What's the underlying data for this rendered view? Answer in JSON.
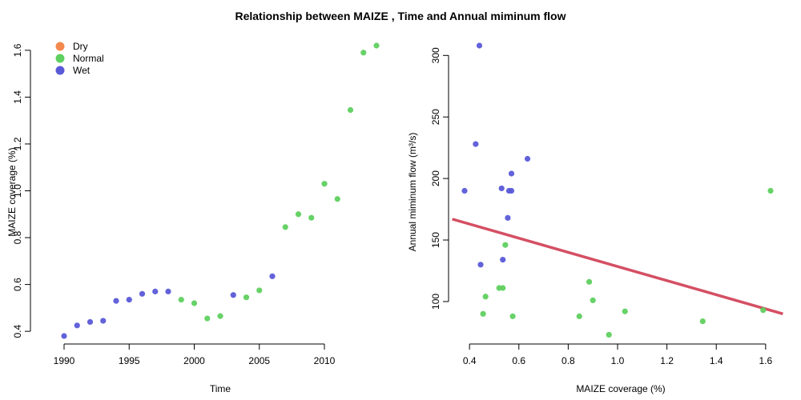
{
  "title": "Relationship between MAIZE , Time and Annual miminum flow",
  "colors": {
    "Dry": "#f4894d",
    "Normal": "#5fd05f",
    "Wet": "#5a5ad8",
    "trend": "#d44f63"
  },
  "legend": {
    "position": "top-left",
    "entries": [
      "Dry",
      "Normal",
      "Wet"
    ]
  },
  "chart_data": [
    {
      "type": "scatter",
      "xlabel": "Time",
      "ylabel": "MAIZE coverage (%)",
      "xlim": [
        1990,
        2014
      ],
      "ylim": [
        0.38,
        1.62
      ],
      "xticks": [
        "1990",
        "1995",
        "2000",
        "2005",
        "2010"
      ],
      "yticks": [
        "0.4",
        "0.6",
        "0.8",
        "1.0",
        "1.2",
        "1.4",
        "1.6"
      ],
      "xtick_values": [
        1990,
        1995,
        2000,
        2005,
        2010
      ],
      "ytick_values": [
        0.4,
        0.6,
        0.8,
        1.0,
        1.2,
        1.4,
        1.6
      ],
      "points": [
        {
          "x": 1990,
          "y": 0.38,
          "cls": "Wet"
        },
        {
          "x": 1991,
          "y": 0.425,
          "cls": "Wet"
        },
        {
          "x": 1992,
          "y": 0.44,
          "cls": "Wet"
        },
        {
          "x": 1993,
          "y": 0.445,
          "cls": "Wet"
        },
        {
          "x": 1994,
          "y": 0.53,
          "cls": "Wet"
        },
        {
          "x": 1995,
          "y": 0.535,
          "cls": "Wet"
        },
        {
          "x": 1996,
          "y": 0.56,
          "cls": "Wet"
        },
        {
          "x": 1997,
          "y": 0.57,
          "cls": "Wet"
        },
        {
          "x": 1998,
          "y": 0.57,
          "cls": "Wet"
        },
        {
          "x": 1999,
          "y": 0.535,
          "cls": "Normal"
        },
        {
          "x": 2000,
          "y": 0.52,
          "cls": "Normal"
        },
        {
          "x": 2001,
          "y": 0.455,
          "cls": "Normal"
        },
        {
          "x": 2002,
          "y": 0.465,
          "cls": "Normal"
        },
        {
          "x": 2003,
          "y": 0.555,
          "cls": "Wet"
        },
        {
          "x": 2004,
          "y": 0.545,
          "cls": "Normal"
        },
        {
          "x": 2005,
          "y": 0.575,
          "cls": "Normal"
        },
        {
          "x": 2006,
          "y": 0.635,
          "cls": "Wet"
        },
        {
          "x": 2007,
          "y": 0.845,
          "cls": "Normal"
        },
        {
          "x": 2008,
          "y": 0.9,
          "cls": "Normal"
        },
        {
          "x": 2009,
          "y": 0.885,
          "cls": "Normal"
        },
        {
          "x": 2010,
          "y": 1.03,
          "cls": "Normal"
        },
        {
          "x": 2011,
          "y": 0.965,
          "cls": "Normal"
        },
        {
          "x": 2012,
          "y": 1.345,
          "cls": "Normal"
        },
        {
          "x": 2013,
          "y": 1.59,
          "cls": "Normal"
        },
        {
          "x": 2014,
          "y": 1.62,
          "cls": "Normal"
        }
      ]
    },
    {
      "type": "scatter",
      "xlabel": "MAIZE coverage (%)",
      "ylabel": "Annual miminum flow (m³/s)",
      "xlim": [
        0.38,
        1.62
      ],
      "ylim": [
        72,
        308
      ],
      "xticks": [
        "0.4",
        "0.6",
        "0.8",
        "1.0",
        "1.2",
        "1.4",
        "1.6"
      ],
      "yticks": [
        "100",
        "150",
        "200",
        "250",
        "300"
      ],
      "xtick_values": [
        0.4,
        0.6,
        0.8,
        1.0,
        1.2,
        1.4,
        1.6
      ],
      "ytick_values": [
        100,
        150,
        200,
        250,
        300
      ],
      "trendline": {
        "x": [
          0.33,
          1.67
        ],
        "y": [
          167,
          90
        ]
      },
      "points": [
        {
          "x": 0.38,
          "y": 190,
          "cls": "Wet"
        },
        {
          "x": 0.425,
          "y": 228,
          "cls": "Wet"
        },
        {
          "x": 0.44,
          "y": 308,
          "cls": "Wet"
        },
        {
          "x": 0.445,
          "y": 130,
          "cls": "Wet"
        },
        {
          "x": 0.53,
          "y": 192,
          "cls": "Wet"
        },
        {
          "x": 0.535,
          "y": 134,
          "cls": "Wet"
        },
        {
          "x": 0.555,
          "y": 168,
          "cls": "Wet"
        },
        {
          "x": 0.56,
          "y": 190,
          "cls": "Wet"
        },
        {
          "x": 0.57,
          "y": 190,
          "cls": "Wet"
        },
        {
          "x": 0.57,
          "y": 204,
          "cls": "Wet"
        },
        {
          "x": 0.635,
          "y": 216,
          "cls": "Wet"
        },
        {
          "x": 0.455,
          "y": 90,
          "cls": "Normal"
        },
        {
          "x": 0.465,
          "y": 104,
          "cls": "Normal"
        },
        {
          "x": 0.52,
          "y": 111,
          "cls": "Normal"
        },
        {
          "x": 0.535,
          "y": 111,
          "cls": "Normal"
        },
        {
          "x": 0.545,
          "y": 146,
          "cls": "Normal"
        },
        {
          "x": 0.575,
          "y": 88,
          "cls": "Normal"
        },
        {
          "x": 0.845,
          "y": 88,
          "cls": "Normal"
        },
        {
          "x": 0.885,
          "y": 116,
          "cls": "Normal"
        },
        {
          "x": 0.9,
          "y": 101,
          "cls": "Normal"
        },
        {
          "x": 0.965,
          "y": 73,
          "cls": "Normal"
        },
        {
          "x": 1.03,
          "y": 92,
          "cls": "Normal"
        },
        {
          "x": 1.345,
          "y": 84,
          "cls": "Normal"
        },
        {
          "x": 1.59,
          "y": 93,
          "cls": "Normal"
        },
        {
          "x": 1.62,
          "y": 190,
          "cls": "Normal"
        }
      ]
    }
  ]
}
